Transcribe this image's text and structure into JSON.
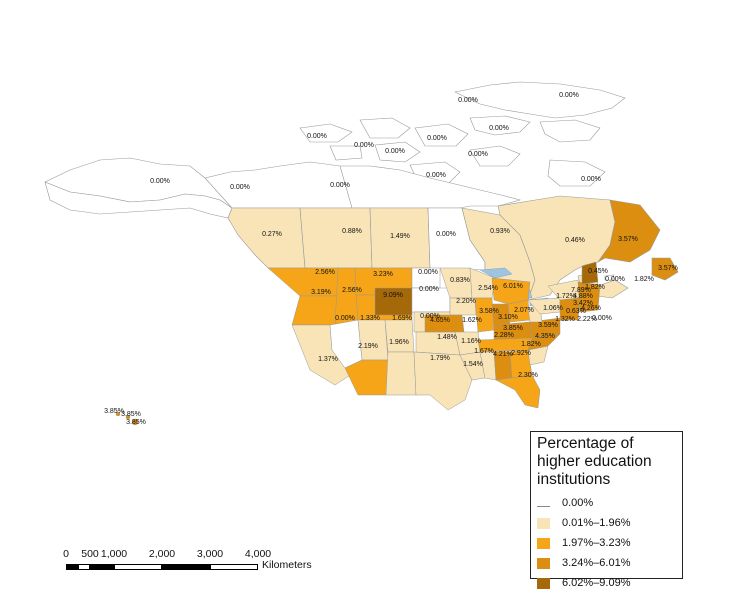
{
  "legend": {
    "title": "Percentage of higher education institutions",
    "classes": [
      {
        "label": "0.00%",
        "color": "#ffffff"
      },
      {
        "label": "0.01%–1.96%",
        "color": "#f9e4b7"
      },
      {
        "label": "1.97%–3.23%",
        "color": "#f5a517"
      },
      {
        "label": "3.24%–6.01%",
        "color": "#dc8e10"
      },
      {
        "label": "6.02%–9.09%",
        "color": "#a6690a"
      }
    ]
  },
  "scale": {
    "ticks": [
      "0",
      "500",
      "1,000",
      "2,000",
      "3,000",
      "4,000"
    ],
    "unit": "Kilometers"
  },
  "regions": [
    {
      "label": "0.00%",
      "cls": 0
    },
    {
      "label": "0.00%",
      "cls": 0
    },
    {
      "label": "0.00%",
      "cls": 0
    },
    {
      "label": "0.00%",
      "cls": 0
    },
    {
      "label": "0.00%",
      "cls": 0
    },
    {
      "label": "0.00%",
      "cls": 0
    },
    {
      "label": "0.00%",
      "cls": 0
    },
    {
      "label": "0.00%",
      "cls": 0
    },
    {
      "label": "0.00%",
      "cls": 0
    },
    {
      "label": "0.00%",
      "cls": 0
    },
    {
      "label": "0.00%",
      "cls": 0
    },
    {
      "label": "0.00%",
      "cls": 0
    },
    {
      "label": "0.00%",
      "cls": 0
    },
    {
      "label": "0.27%",
      "cls": 1
    },
    {
      "label": "0.88%",
      "cls": 1
    },
    {
      "label": "1.49%",
      "cls": 1
    },
    {
      "label": "0.00%",
      "cls": 0
    },
    {
      "label": "0.93%",
      "cls": 1
    },
    {
      "label": "0.46%",
      "cls": 1
    },
    {
      "label": "3.57%",
      "cls": 3
    },
    {
      "label": "3.57%",
      "cls": 3
    },
    {
      "label": "0.45%",
      "cls": 1
    },
    {
      "label": "0.00%",
      "cls": 0
    },
    {
      "label": "1.82%",
      "cls": 1
    },
    {
      "label": "1.82%",
      "cls": 1
    },
    {
      "label": "2.56%",
      "cls": 2
    },
    {
      "label": "3.23%",
      "cls": 2
    },
    {
      "label": "0.00%",
      "cls": 0
    },
    {
      "label": "3.19%",
      "cls": 2
    },
    {
      "label": "2.56%",
      "cls": 2
    },
    {
      "label": "9.09%",
      "cls": 4
    },
    {
      "label": "0.83%",
      "cls": 1
    },
    {
      "label": "2.54%",
      "cls": 2
    },
    {
      "label": "6.01%",
      "cls": 3
    },
    {
      "label": "0.00%",
      "cls": 0
    },
    {
      "label": "0.00%",
      "cls": 0
    },
    {
      "label": "0.00%",
      "cls": 0
    },
    {
      "label": "2.20%",
      "cls": 2
    },
    {
      "label": "1.62%",
      "cls": 1
    },
    {
      "label": "1.33%",
      "cls": 1
    },
    {
      "label": "1.69%",
      "cls": 1
    },
    {
      "label": "4.65%",
      "cls": 3
    },
    {
      "label": "3.58%",
      "cls": 3
    },
    {
      "label": "3.10%",
      "cls": 2
    },
    {
      "label": "2.07%",
      "cls": 2
    },
    {
      "label": "1.72%",
      "cls": 1
    },
    {
      "label": "7.89%",
      "cls": 4
    },
    {
      "label": "4.88%",
      "cls": 3
    },
    {
      "label": "3.42%",
      "cls": 3
    },
    {
      "label": "1.06%",
      "cls": 1
    },
    {
      "label": "1.32%",
      "cls": 1
    },
    {
      "label": "0.63%",
      "cls": 1
    },
    {
      "label": "4.26%",
      "cls": 3
    },
    {
      "label": "2.22%",
      "cls": 2
    },
    {
      "label": "0.00%",
      "cls": 0
    },
    {
      "label": "3.85%",
      "cls": 3
    },
    {
      "label": "3.59%",
      "cls": 3
    },
    {
      "label": "1.37%",
      "cls": 1
    },
    {
      "label": "2.19%",
      "cls": 2
    },
    {
      "label": "1.96%",
      "cls": 1
    },
    {
      "label": "1.48%",
      "cls": 1
    },
    {
      "label": "1.16%",
      "cls": 1
    },
    {
      "label": "2.28%",
      "cls": 2
    },
    {
      "label": "4.35%",
      "cls": 3
    },
    {
      "label": "1.82%",
      "cls": 1
    },
    {
      "label": "1.79%",
      "cls": 1
    },
    {
      "label": "1.67%",
      "cls": 1
    },
    {
      "label": "4.21%",
      "cls": 3
    },
    {
      "label": "2.92%",
      "cls": 2
    },
    {
      "label": "1.54%",
      "cls": 1
    },
    {
      "label": "2.30%",
      "cls": 2
    },
    {
      "label": "3.85%",
      "cls": 3
    },
    {
      "label": "3.85%",
      "cls": 3
    },
    {
      "label": "3.85%",
      "cls": 3
    }
  ]
}
